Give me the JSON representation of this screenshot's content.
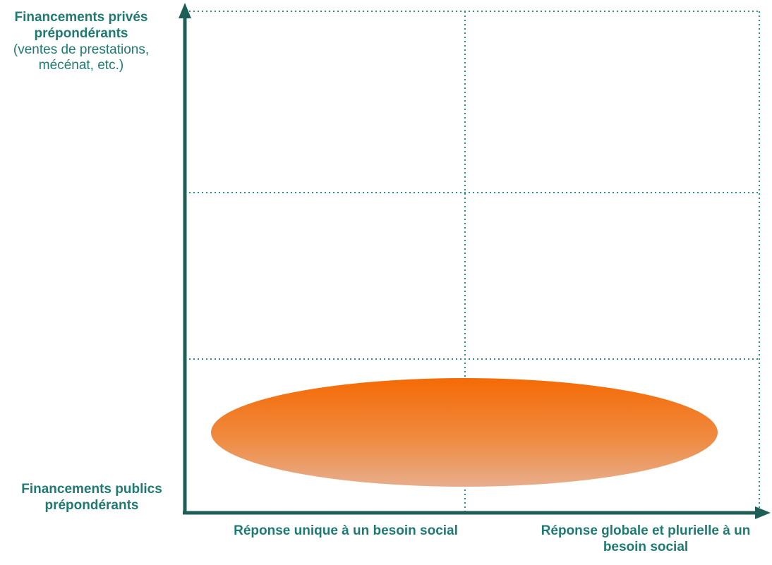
{
  "axes": {
    "y_top_title": "Financements privés prépondérants",
    "y_top_note": "(ventes de prestations, mécénat, etc.)",
    "y_bottom_title": "Financements publics prépondérants",
    "x_left_label": "Réponse unique à un besoin social",
    "x_right_label": "Réponse globale et plurielle à un besoin social"
  },
  "colors": {
    "axis": "#1d5e57",
    "grid": "#2a8f88",
    "text": "#1f7a72",
    "ellipse_top": "#f26a0a",
    "ellipse_bottom": "#e9a27c"
  }
}
